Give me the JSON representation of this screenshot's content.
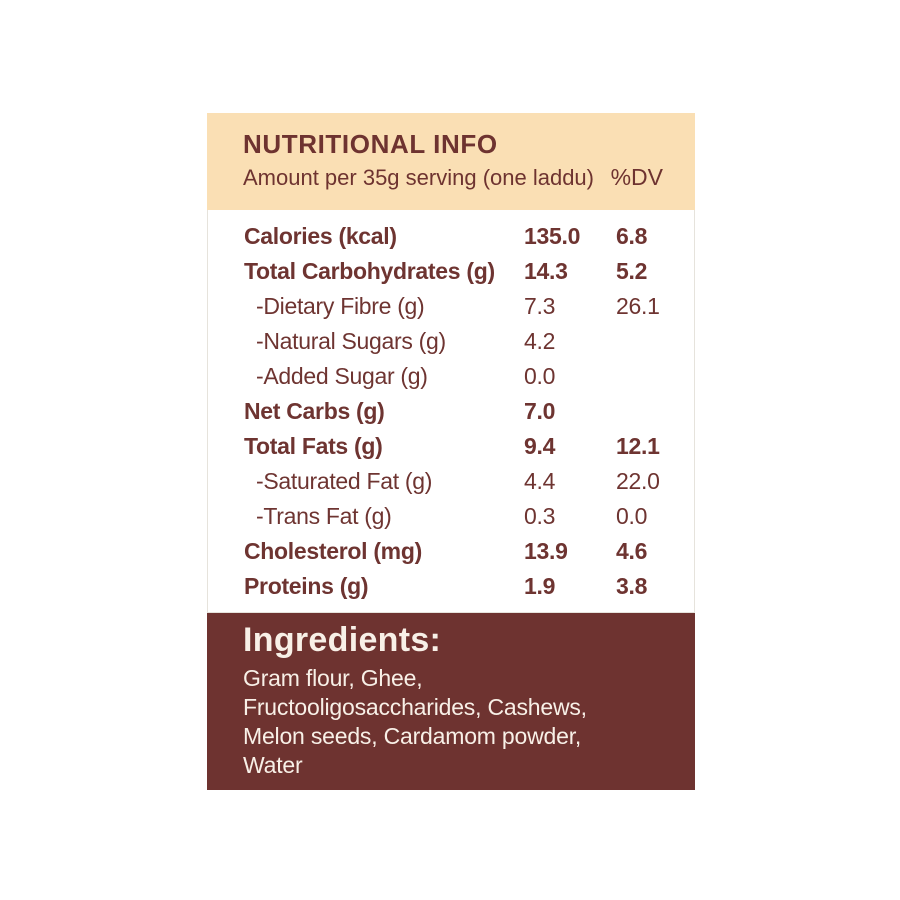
{
  "label": {
    "header": {
      "title": "NUTRITIONAL INFO",
      "subtitle": "Amount per 35g serving (one laddu)",
      "dv_header": "%DV"
    },
    "table": {
      "rows": [
        {
          "name": "Calories (kcal)",
          "value": "135.0",
          "dv": "6.8",
          "bold": true,
          "indent": false
        },
        {
          "name": "Total Carbohydrates (g)",
          "value": "14.3",
          "dv": "5.2",
          "bold": true,
          "indent": false
        },
        {
          "name": "-Dietary Fibre (g)",
          "value": "7.3",
          "dv": "26.1",
          "bold": false,
          "indent": true
        },
        {
          "name": "-Natural Sugars (g)",
          "value": "4.2",
          "dv": "",
          "bold": false,
          "indent": true
        },
        {
          "name": "-Added Sugar (g)",
          "value": "0.0",
          "dv": "",
          "bold": false,
          "indent": true
        },
        {
          "name": "Net Carbs (g)",
          "value": "7.0",
          "dv": "",
          "bold": true,
          "indent": false
        },
        {
          "name": "Total Fats (g)",
          "value": "9.4",
          "dv": "12.1",
          "bold": true,
          "indent": false
        },
        {
          "name": "-Saturated Fat (g)",
          "value": "4.4",
          "dv": "22.0",
          "bold": false,
          "indent": true
        },
        {
          "name": "-Trans Fat (g)",
          "value": "0.3",
          "dv": "0.0",
          "bold": false,
          "indent": true
        },
        {
          "name": "Cholesterol (mg)",
          "value": "13.9",
          "dv": "4.6",
          "bold": true,
          "indent": false
        },
        {
          "name": "Proteins (g)",
          "value": "1.9",
          "dv": "3.8",
          "bold": true,
          "indent": false
        }
      ]
    },
    "ingredients": {
      "heading": "Ingredients:",
      "lines": [
        "Gram flour, Ghee,",
        "Fructooligosaccharides, Cashews,",
        "Melon seeds, Cardamom powder,",
        "Water"
      ]
    },
    "colors": {
      "header_background": "#FADFB4",
      "ingredients_background": "#6E3330",
      "text": "#6E3431",
      "light_text": "#F8F0E7"
    }
  }
}
